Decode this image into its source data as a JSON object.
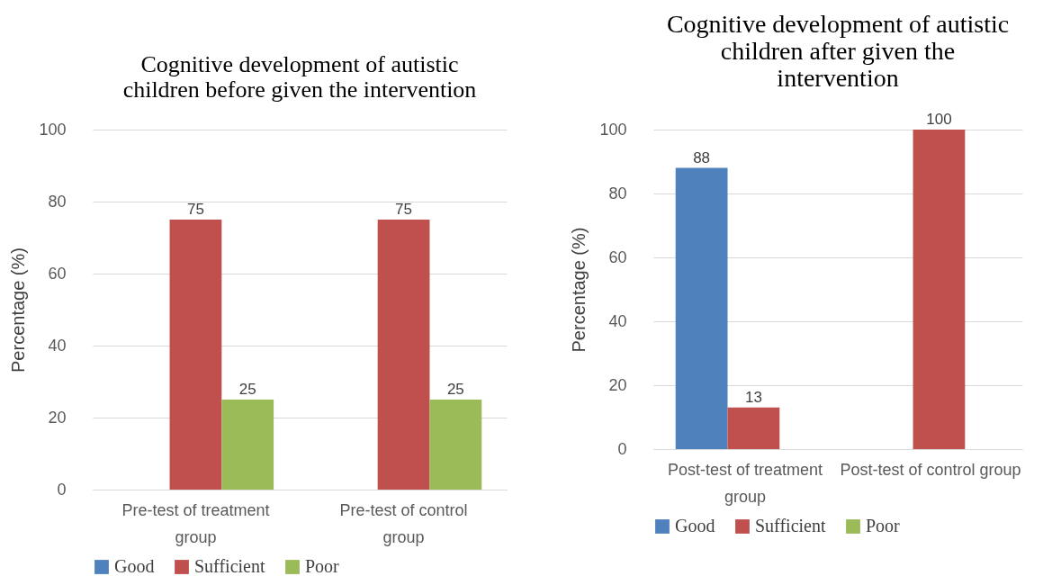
{
  "chart_data": [
    {
      "type": "bar",
      "title": "Cognitive development of autistic children before given the intervention",
      "ylabel": "Percentage (%)",
      "categories": [
        "Pre-test of treatment group",
        "Pre-test of control group"
      ],
      "series": [
        {
          "name": "Good",
          "color": "#4f81bd",
          "values": [
            null,
            null
          ]
        },
        {
          "name": "Sufficient",
          "color": "#c0504d",
          "values": [
            75,
            75
          ]
        },
        {
          "name": "Poor",
          "color": "#9bbb59",
          "values": [
            25,
            25
          ]
        }
      ],
      "ylim": [
        0,
        100
      ],
      "yticks": [
        0,
        20,
        40,
        60,
        80,
        100
      ],
      "grid": "y",
      "legend": "bottom",
      "data_labels": true
    },
    {
      "type": "bar",
      "title": "Cognitive development of autistic children after given the intervention",
      "ylabel": "Percentage (%)",
      "categories": [
        "Post-test of treatment group",
        "Post-test of control group"
      ],
      "series": [
        {
          "name": "Good",
          "color": "#4f81bd",
          "values": [
            88,
            null
          ]
        },
        {
          "name": "Sufficient",
          "color": "#c0504d",
          "values": [
            13,
            100
          ]
        },
        {
          "name": "Poor",
          "color": "#9bbb59",
          "values": [
            null,
            null
          ]
        }
      ],
      "ylim": [
        0,
        100
      ],
      "yticks": [
        0,
        20,
        40,
        60,
        80,
        100
      ],
      "grid": "y",
      "legend": "bottom",
      "data_labels": true
    }
  ]
}
